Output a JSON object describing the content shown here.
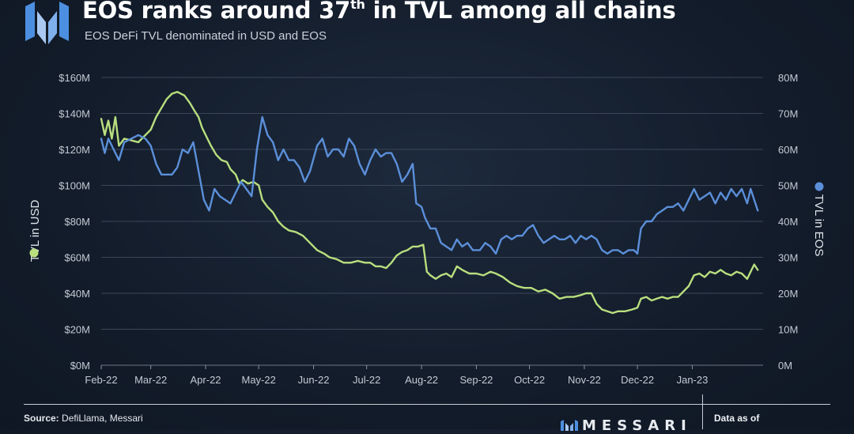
{
  "header": {
    "title_main": "EOS ranks around 37",
    "title_sup": "th",
    "title_rest": " in TVL among all chains",
    "subtitle": "EOS DeFi TVL denominated in USD and EOS"
  },
  "footer": {
    "source_label": "Source:",
    "source_text": " DefiLlama, Messari",
    "brand": "MESSARI",
    "data_as_of": "Data as of"
  },
  "colors": {
    "usd_series": "#b9df7e",
    "eos_series": "#5b8fd9",
    "grid": "#3a4658",
    "tick_text": "#c3cad4",
    "brand_blue": "#4c8fe0"
  },
  "chart_data": {
    "type": "line",
    "x_type": "date",
    "x_ticks": [
      "Feb-22",
      "Mar-22",
      "Apr-22",
      "May-22",
      "Jun-22",
      "Jul-22",
      "Aug-22",
      "Sep-22",
      "Oct-22",
      "Nov-22",
      "Dec-22",
      "Jan-23"
    ],
    "xlim": [
      "2022-02-01",
      "2023-02-10"
    ],
    "left_axis": {
      "label": "TVL in USD",
      "ticks": [
        "$0M",
        "$20M",
        "$40M",
        "$60M",
        "$80M",
        "$100M",
        "$120M",
        "$140M",
        "$160M"
      ],
      "ylim": [
        0,
        160
      ]
    },
    "right_axis": {
      "label": "TVL in EOS",
      "ticks": [
        "0M",
        "10M",
        "20M",
        "30M",
        "40M",
        "50M",
        "60M",
        "70M",
        "80M"
      ],
      "ylim": [
        0,
        80
      ]
    },
    "grid": true,
    "series": [
      {
        "name": "TVL in USD",
        "axis": "left",
        "points": [
          [
            "2022-02-01",
            137
          ],
          [
            "2022-02-03",
            128
          ],
          [
            "2022-02-05",
            136
          ],
          [
            "2022-02-07",
            126
          ],
          [
            "2022-02-09",
            138
          ],
          [
            "2022-02-11",
            122
          ],
          [
            "2022-02-14",
            126
          ],
          [
            "2022-02-18",
            125
          ],
          [
            "2022-02-22",
            124
          ],
          [
            "2022-02-26",
            128
          ],
          [
            "2022-03-01",
            131
          ],
          [
            "2022-03-04",
            138
          ],
          [
            "2022-03-07",
            143
          ],
          [
            "2022-03-10",
            148
          ],
          [
            "2022-03-13",
            151
          ],
          [
            "2022-03-16",
            152
          ],
          [
            "2022-03-20",
            150
          ],
          [
            "2022-03-23",
            146
          ],
          [
            "2022-03-26",
            141
          ],
          [
            "2022-03-28",
            138
          ],
          [
            "2022-03-30",
            132
          ],
          [
            "2022-04-02",
            126
          ],
          [
            "2022-04-04",
            122
          ],
          [
            "2022-04-07",
            117
          ],
          [
            "2022-04-10",
            114
          ],
          [
            "2022-04-13",
            113
          ],
          [
            "2022-04-15",
            109
          ],
          [
            "2022-04-18",
            106
          ],
          [
            "2022-04-20",
            101
          ],
          [
            "2022-04-22",
            103
          ],
          [
            "2022-04-25",
            101
          ],
          [
            "2022-04-28",
            102
          ],
          [
            "2022-05-01",
            100
          ],
          [
            "2022-05-03",
            92
          ],
          [
            "2022-05-06",
            88
          ],
          [
            "2022-05-09",
            85
          ],
          [
            "2022-05-12",
            80
          ],
          [
            "2022-05-15",
            77
          ],
          [
            "2022-05-18",
            75
          ],
          [
            "2022-05-22",
            74
          ],
          [
            "2022-05-26",
            72
          ],
          [
            "2022-05-30",
            68
          ],
          [
            "2022-06-03",
            64
          ],
          [
            "2022-06-07",
            62
          ],
          [
            "2022-06-10",
            60
          ],
          [
            "2022-06-14",
            59
          ],
          [
            "2022-06-18",
            57
          ],
          [
            "2022-06-22",
            57
          ],
          [
            "2022-06-26",
            58
          ],
          [
            "2022-06-30",
            57
          ],
          [
            "2022-07-03",
            57
          ],
          [
            "2022-07-06",
            55
          ],
          [
            "2022-07-09",
            55
          ],
          [
            "2022-07-12",
            54
          ],
          [
            "2022-07-15",
            57
          ],
          [
            "2022-07-18",
            61
          ],
          [
            "2022-07-21",
            63
          ],
          [
            "2022-07-24",
            64
          ],
          [
            "2022-07-27",
            66
          ],
          [
            "2022-07-30",
            66
          ],
          [
            "2022-08-02",
            67
          ],
          [
            "2022-08-04",
            52
          ],
          [
            "2022-08-06",
            50
          ],
          [
            "2022-08-09",
            48
          ],
          [
            "2022-08-12",
            50
          ],
          [
            "2022-08-15",
            51
          ],
          [
            "2022-08-18",
            49
          ],
          [
            "2022-08-21",
            55
          ],
          [
            "2022-08-24",
            53
          ],
          [
            "2022-08-28",
            51
          ],
          [
            "2022-09-01",
            51
          ],
          [
            "2022-09-05",
            50
          ],
          [
            "2022-09-09",
            52
          ],
          [
            "2022-09-12",
            51
          ],
          [
            "2022-09-16",
            49
          ],
          [
            "2022-09-20",
            46
          ],
          [
            "2022-09-24",
            44
          ],
          [
            "2022-09-28",
            43
          ],
          [
            "2022-10-02",
            43
          ],
          [
            "2022-10-06",
            41
          ],
          [
            "2022-10-10",
            42
          ],
          [
            "2022-10-14",
            40
          ],
          [
            "2022-10-18",
            37
          ],
          [
            "2022-10-22",
            38
          ],
          [
            "2022-10-26",
            38
          ],
          [
            "2022-10-30",
            39
          ],
          [
            "2022-11-02",
            40
          ],
          [
            "2022-11-05",
            40
          ],
          [
            "2022-11-08",
            34
          ],
          [
            "2022-11-11",
            31
          ],
          [
            "2022-11-14",
            30
          ],
          [
            "2022-11-17",
            29
          ],
          [
            "2022-11-20",
            30
          ],
          [
            "2022-11-24",
            30
          ],
          [
            "2022-11-28",
            31
          ],
          [
            "2022-12-01",
            32
          ],
          [
            "2022-12-03",
            37
          ],
          [
            "2022-12-06",
            38
          ],
          [
            "2022-12-09",
            36
          ],
          [
            "2022-12-12",
            37
          ],
          [
            "2022-12-15",
            38
          ],
          [
            "2022-12-18",
            37
          ],
          [
            "2022-12-21",
            38
          ],
          [
            "2022-12-24",
            38
          ],
          [
            "2022-12-27",
            41
          ],
          [
            "2022-12-30",
            44
          ],
          [
            "2023-01-02",
            50
          ],
          [
            "2023-01-05",
            51
          ],
          [
            "2023-01-08",
            49
          ],
          [
            "2023-01-11",
            52
          ],
          [
            "2023-01-14",
            51
          ],
          [
            "2023-01-17",
            53
          ],
          [
            "2023-01-20",
            51
          ],
          [
            "2023-01-23",
            50
          ],
          [
            "2023-01-26",
            52
          ],
          [
            "2023-01-29",
            51
          ],
          [
            "2023-02-01",
            48
          ],
          [
            "2023-02-03",
            52
          ],
          [
            "2023-02-05",
            56
          ],
          [
            "2023-02-07",
            53
          ]
        ]
      },
      {
        "name": "TVL in EOS",
        "axis": "right",
        "points": [
          [
            "2022-02-01",
            63
          ],
          [
            "2022-02-03",
            59
          ],
          [
            "2022-02-05",
            63
          ],
          [
            "2022-02-08",
            60
          ],
          [
            "2022-02-11",
            57
          ],
          [
            "2022-02-14",
            62
          ],
          [
            "2022-02-18",
            63
          ],
          [
            "2022-02-22",
            64
          ],
          [
            "2022-02-26",
            63
          ],
          [
            "2022-03-01",
            61
          ],
          [
            "2022-03-04",
            56
          ],
          [
            "2022-03-07",
            53
          ],
          [
            "2022-03-10",
            53
          ],
          [
            "2022-03-13",
            53
          ],
          [
            "2022-03-16",
            55
          ],
          [
            "2022-03-19",
            60
          ],
          [
            "2022-03-22",
            59
          ],
          [
            "2022-03-25",
            62
          ],
          [
            "2022-03-28",
            54
          ],
          [
            "2022-03-31",
            46
          ],
          [
            "2022-04-03",
            43
          ],
          [
            "2022-04-06",
            49
          ],
          [
            "2022-04-09",
            47
          ],
          [
            "2022-04-12",
            46
          ],
          [
            "2022-04-15",
            45
          ],
          [
            "2022-04-18",
            48
          ],
          [
            "2022-04-21",
            51
          ],
          [
            "2022-04-24",
            49
          ],
          [
            "2022-04-27",
            47
          ],
          [
            "2022-04-30",
            60
          ],
          [
            "2022-05-03",
            69
          ],
          [
            "2022-05-06",
            64
          ],
          [
            "2022-05-09",
            62
          ],
          [
            "2022-05-12",
            57
          ],
          [
            "2022-05-15",
            60
          ],
          [
            "2022-05-18",
            57
          ],
          [
            "2022-05-21",
            57
          ],
          [
            "2022-05-24",
            55
          ],
          [
            "2022-05-27",
            51
          ],
          [
            "2022-05-30",
            54
          ],
          [
            "2022-06-03",
            61
          ],
          [
            "2022-06-06",
            63
          ],
          [
            "2022-06-09",
            58
          ],
          [
            "2022-06-12",
            60
          ],
          [
            "2022-06-15",
            60
          ],
          [
            "2022-06-18",
            58
          ],
          [
            "2022-06-21",
            63
          ],
          [
            "2022-06-24",
            61
          ],
          [
            "2022-06-27",
            56
          ],
          [
            "2022-06-30",
            53
          ],
          [
            "2022-07-03",
            57
          ],
          [
            "2022-07-06",
            60
          ],
          [
            "2022-07-09",
            58
          ],
          [
            "2022-07-12",
            59
          ],
          [
            "2022-07-15",
            59
          ],
          [
            "2022-07-18",
            56
          ],
          [
            "2022-07-21",
            51
          ],
          [
            "2022-07-24",
            53
          ],
          [
            "2022-07-27",
            56
          ],
          [
            "2022-07-29",
            45
          ],
          [
            "2022-08-01",
            44
          ],
          [
            "2022-08-03",
            41
          ],
          [
            "2022-08-06",
            38
          ],
          [
            "2022-08-09",
            38
          ],
          [
            "2022-08-12",
            34
          ],
          [
            "2022-08-15",
            33
          ],
          [
            "2022-08-18",
            32
          ],
          [
            "2022-08-21",
            35
          ],
          [
            "2022-08-24",
            33
          ],
          [
            "2022-08-27",
            34
          ],
          [
            "2022-08-30",
            32
          ],
          [
            "2022-09-03",
            32
          ],
          [
            "2022-09-06",
            34
          ],
          [
            "2022-09-09",
            33
          ],
          [
            "2022-09-12",
            31
          ],
          [
            "2022-09-15",
            35
          ],
          [
            "2022-09-18",
            36
          ],
          [
            "2022-09-21",
            35
          ],
          [
            "2022-09-24",
            36
          ],
          [
            "2022-09-27",
            36
          ],
          [
            "2022-09-30",
            38
          ],
          [
            "2022-10-03",
            39
          ],
          [
            "2022-10-06",
            36
          ],
          [
            "2022-10-09",
            34
          ],
          [
            "2022-10-12",
            35
          ],
          [
            "2022-10-15",
            36
          ],
          [
            "2022-10-18",
            35
          ],
          [
            "2022-10-21",
            35
          ],
          [
            "2022-10-24",
            36
          ],
          [
            "2022-10-27",
            34
          ],
          [
            "2022-10-30",
            36
          ],
          [
            "2022-11-02",
            35
          ],
          [
            "2022-11-05",
            36
          ],
          [
            "2022-11-08",
            35
          ],
          [
            "2022-11-11",
            32
          ],
          [
            "2022-11-14",
            31
          ],
          [
            "2022-11-17",
            32
          ],
          [
            "2022-11-20",
            32
          ],
          [
            "2022-11-23",
            31
          ],
          [
            "2022-11-26",
            32
          ],
          [
            "2022-11-29",
            32
          ],
          [
            "2022-12-01",
            31
          ],
          [
            "2022-12-03",
            38
          ],
          [
            "2022-12-06",
            40
          ],
          [
            "2022-12-09",
            40
          ],
          [
            "2022-12-12",
            42
          ],
          [
            "2022-12-15",
            43
          ],
          [
            "2022-12-18",
            44
          ],
          [
            "2022-12-21",
            44
          ],
          [
            "2022-12-24",
            45
          ],
          [
            "2022-12-27",
            43
          ],
          [
            "2022-12-30",
            46
          ],
          [
            "2023-01-02",
            49
          ],
          [
            "2023-01-05",
            46
          ],
          [
            "2023-01-08",
            47
          ],
          [
            "2023-01-11",
            48
          ],
          [
            "2023-01-14",
            45
          ],
          [
            "2023-01-17",
            48
          ],
          [
            "2023-01-20",
            46
          ],
          [
            "2023-01-23",
            49
          ],
          [
            "2023-01-26",
            47
          ],
          [
            "2023-01-29",
            49
          ],
          [
            "2023-02-01",
            45
          ],
          [
            "2023-02-03",
            49
          ],
          [
            "2023-02-05",
            46
          ],
          [
            "2023-02-07",
            43
          ]
        ]
      }
    ]
  }
}
